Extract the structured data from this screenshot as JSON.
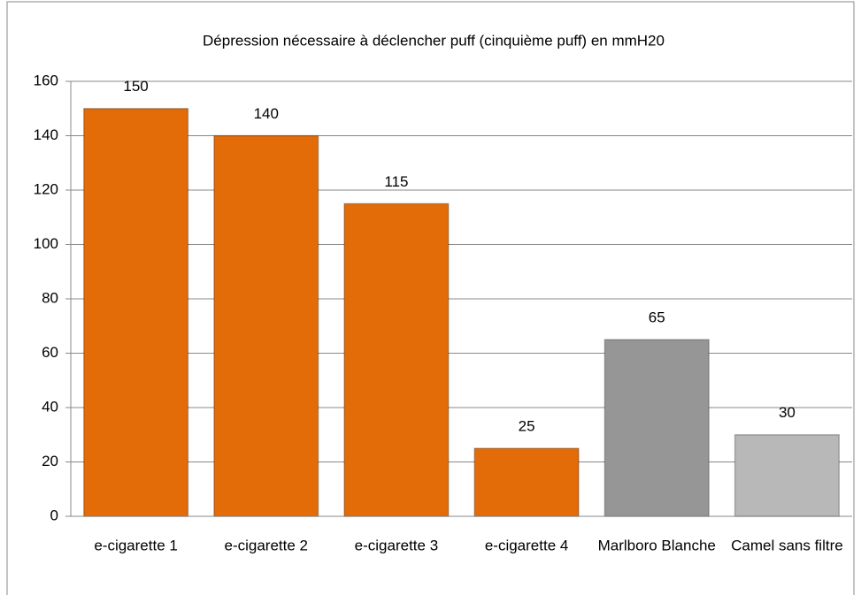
{
  "chart_data": {
    "type": "bar",
    "title": "Dépression nécessaire à déclencher puff (cinquième puff) en mmH20",
    "categories": [
      "e-cigarette 1",
      "e-cigarette 2",
      "e-cigarette 3",
      "e-cigarette 4",
      "Marlboro Blanche",
      "Camel sans filtre"
    ],
    "values": [
      150,
      140,
      115,
      25,
      65,
      30
    ],
    "colors": [
      "#e36c09",
      "#e36c09",
      "#e36c09",
      "#e36c09",
      "#969696",
      "#b8b8b8"
    ],
    "ylim": [
      0,
      160
    ],
    "yticks": [
      0,
      20,
      40,
      60,
      80,
      100,
      120,
      140,
      160
    ],
    "grid": true
  }
}
